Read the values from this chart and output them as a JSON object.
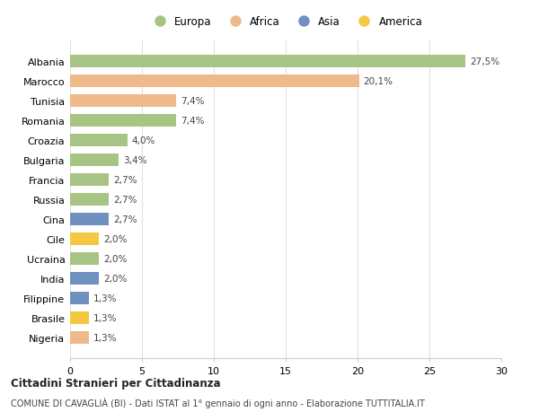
{
  "countries": [
    "Albania",
    "Marocco",
    "Tunisia",
    "Romania",
    "Croazia",
    "Bulgaria",
    "Francia",
    "Russia",
    "Cina",
    "Cile",
    "Ucraina",
    "India",
    "Filippine",
    "Brasile",
    "Nigeria"
  ],
  "values": [
    27.5,
    20.1,
    7.4,
    7.4,
    4.0,
    3.4,
    2.7,
    2.7,
    2.7,
    2.0,
    2.0,
    2.0,
    1.3,
    1.3,
    1.3
  ],
  "labels": [
    "27,5%",
    "20,1%",
    "7,4%",
    "7,4%",
    "4,0%",
    "3,4%",
    "2,7%",
    "2,7%",
    "2,7%",
    "2,0%",
    "2,0%",
    "2,0%",
    "1,3%",
    "1,3%",
    "1,3%"
  ],
  "continents": [
    "Europa",
    "Africa",
    "Africa",
    "Europa",
    "Europa",
    "Europa",
    "Europa",
    "Europa",
    "Asia",
    "America",
    "Europa",
    "Asia",
    "Asia",
    "America",
    "Africa"
  ],
  "colors": {
    "Europa": "#a8c484",
    "Africa": "#f0b98a",
    "Asia": "#7090c0",
    "America": "#f5c842"
  },
  "legend_order": [
    "Europa",
    "Africa",
    "Asia",
    "America"
  ],
  "title": "Cittadini Stranieri per Cittadinanza",
  "subtitle": "COMUNE DI CAVAGLIÀ (BI) - Dati ISTAT al 1° gennaio di ogni anno - Elaborazione TUTTITALIA.IT",
  "xlim": [
    0,
    30
  ],
  "xticks": [
    0,
    5,
    10,
    15,
    20,
    25,
    30
  ],
  "background_color": "#ffffff",
  "grid_color": "#e0e0e0"
}
